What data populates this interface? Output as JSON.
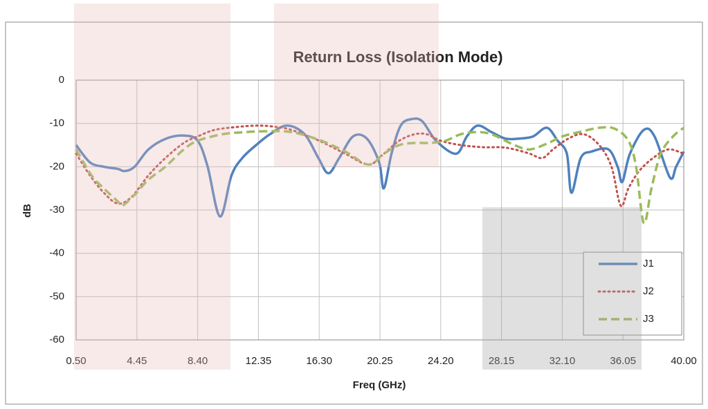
{
  "chart_data": {
    "type": "line",
    "title": "Return Loss (Isolation Mode)",
    "x_label": "Freq (GHz)",
    "y_label": "dB",
    "xlim": [
      0.5,
      40
    ],
    "ylim": [
      -60,
      0
    ],
    "xticks": [
      {
        "value": 0.5,
        "label": "0.50"
      },
      4.45,
      {
        "value": 8.4,
        "label": "8.40"
      },
      12.35,
      {
        "value": 16.3,
        "label": "16.30"
      },
      20.25,
      {
        "value": 24.2,
        "label": "24.20"
      },
      28.15,
      {
        "value": 32.1,
        "label": "32.10"
      },
      36.05,
      {
        "value": 40,
        "label": "40.00"
      }
    ],
    "yticks": [
      0,
      -10,
      -20,
      -30,
      -40,
      -50,
      -60
    ],
    "grid": true,
    "legend": "lower right",
    "series": [
      {
        "name": "J1",
        "color": "#4f81bd",
        "dash": "solid",
        "x": [
          0.5,
          1.4,
          2.3,
          3.2,
          3.65,
          4.3,
          5.2,
          6.35,
          7.5,
          8.4,
          9.05,
          9.85,
          10.6,
          11.3,
          12.2,
          13.1,
          14.2,
          15.35,
          16.25,
          16.9,
          17.6,
          18.5,
          19.4,
          20.2,
          20.5,
          21.0,
          21.6,
          22.3,
          23.0,
          23.9,
          25.2,
          25.9,
          26.6,
          27.5,
          28.4,
          29.3,
          30.2,
          31.1,
          31.8,
          32.4,
          32.7,
          33.3,
          34.0,
          35.1,
          35.7,
          36.0,
          36.5,
          37.4,
          38.1,
          39.1,
          39.5,
          40
        ],
        "values": [
          -15,
          -19,
          -20,
          -20.5,
          -21,
          -20,
          -16,
          -13.5,
          -12.8,
          -14,
          -20,
          -31.5,
          -22,
          -18,
          -15,
          -12.5,
          -10.5,
          -12.5,
          -18,
          -21.5,
          -18,
          -13,
          -13.5,
          -19,
          -25,
          -17,
          -10.5,
          -9,
          -9.5,
          -14,
          -17,
          -13,
          -10.5,
          -12,
          -13.5,
          -13.5,
          -13,
          -11,
          -14,
          -17,
          -26,
          -18,
          -16.5,
          -16,
          -20,
          -23.5,
          -17,
          -11.5,
          -13,
          -22.5,
          -20,
          -16.5
        ]
      },
      {
        "name": "J2",
        "color": "#c0504d",
        "dash": "dotted",
        "x": [
          0.5,
          1.4,
          2.3,
          3.2,
          4.1,
          5.2,
          6.3,
          7.5,
          8.4,
          9.5,
          11,
          12.35,
          13.5,
          14.5,
          16.3,
          18,
          19.5,
          20.5,
          21.5,
          22.5,
          23.3,
          24.2,
          25.5,
          27,
          28.15,
          29,
          30,
          30.8,
          31.5,
          32.5,
          33.5,
          34.5,
          35.3,
          35.9,
          36.4,
          37.1,
          38,
          39,
          40
        ],
        "values": [
          -17,
          -22,
          -26,
          -28.5,
          -27,
          -22,
          -18,
          -14.5,
          -13,
          -11.5,
          -10.8,
          -10.5,
          -10.8,
          -11.5,
          -14,
          -17,
          -19.5,
          -17,
          -14,
          -12.5,
          -12.5,
          -14,
          -15,
          -15.5,
          -15.5,
          -16,
          -17,
          -18,
          -16,
          -13.5,
          -12.5,
          -15,
          -20,
          -29,
          -25,
          -21,
          -18,
          -16,
          -17
        ]
      },
      {
        "name": "J3",
        "color": "#9bbb59",
        "dash": "dashed",
        "x": [
          0.5,
          1.5,
          2.3,
          3.2,
          3.5,
          4.3,
          5.2,
          6.3,
          7.5,
          8.4,
          10,
          11.5,
          13,
          14.5,
          16.3,
          18,
          19.5,
          20.5,
          21.5,
          22.5,
          23.5,
          24.5,
          25.5,
          26.5,
          27.5,
          29,
          30,
          31.2,
          32.1,
          33.2,
          34.5,
          35.5,
          36.4,
          36.9,
          37.4,
          37.9,
          38.5,
          39.3,
          40
        ],
        "values": [
          -16,
          -22,
          -25,
          -28,
          -29,
          -26.5,
          -23,
          -20,
          -16,
          -14,
          -12.5,
          -12,
          -11.8,
          -12,
          -13.8,
          -16.5,
          -19.5,
          -17,
          -15,
          -14.5,
          -14.5,
          -14,
          -12.5,
          -12,
          -12.5,
          -15,
          -16,
          -14.5,
          -13,
          -12,
          -11,
          -11.2,
          -14,
          -20,
          -33,
          -25,
          -17,
          -13,
          -11
        ]
      }
    ]
  }
}
